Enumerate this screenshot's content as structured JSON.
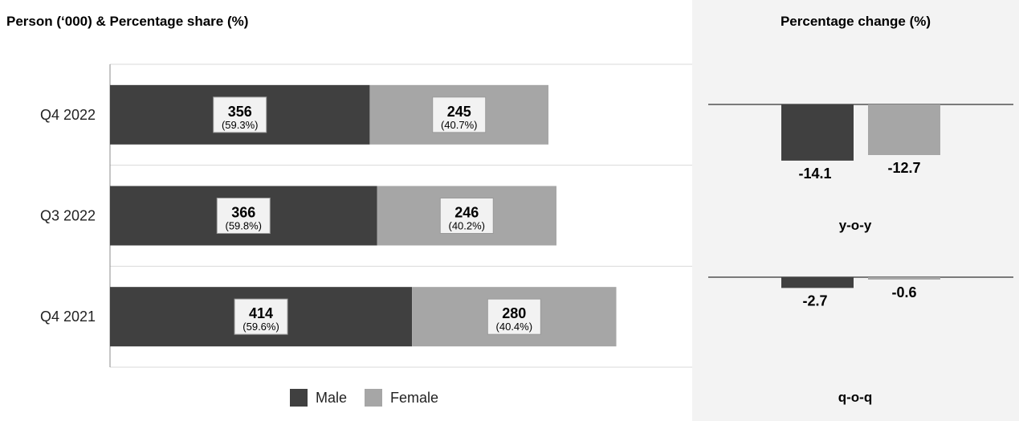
{
  "left_title": "Person (‘000) & Percentage share (%)",
  "right_title": "Percentage change (%)",
  "legend": [
    {
      "name": "Male",
      "color": "#404040"
    },
    {
      "name": "Female",
      "color": "#a6a6a6"
    }
  ],
  "chart_data": [
    {
      "type": "bar",
      "orientation": "horizontal",
      "stacked": true,
      "title": "Person (‘000) & Percentage share (%)",
      "categories": [
        "Q4 2022",
        "Q3 2022",
        "Q4 2021"
      ],
      "series": [
        {
          "name": "Male",
          "color": "#404040",
          "values": [
            356,
            366,
            414
          ],
          "labels": [
            "356",
            "366",
            "414"
          ],
          "shares": [
            "(59.3%)",
            "(59.8%)",
            "(59.6%)"
          ]
        },
        {
          "name": "Female",
          "color": "#a6a6a6",
          "values": [
            245,
            246,
            280
          ],
          "labels": [
            "245",
            "246",
            "280"
          ],
          "shares": [
            "(40.7%)",
            "(40.2%)",
            "(40.4%)"
          ]
        }
      ],
      "xlim": [
        0,
        730
      ],
      "grid": true,
      "legend_position": "bottom"
    },
    {
      "type": "bar",
      "title": "Percentage change (%)",
      "groups": [
        "y-o-y",
        "q-o-q"
      ],
      "series": [
        {
          "name": "Male",
          "color": "#404040",
          "values": [
            -14.1,
            -2.7
          ],
          "labels": [
            "-14.1",
            "-2.7"
          ]
        },
        {
          "name": "Female",
          "color": "#a6a6a6",
          "values": [
            -12.7,
            -0.6
          ],
          "labels": [
            "-12.7",
            "-0.6"
          ]
        }
      ]
    }
  ]
}
